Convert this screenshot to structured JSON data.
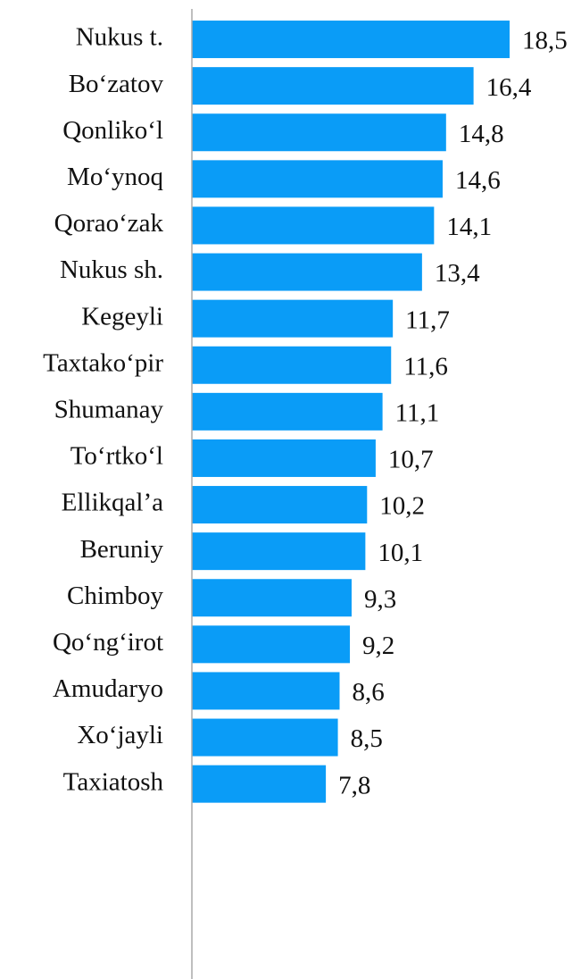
{
  "chart_data": {
    "type": "bar",
    "orientation": "horizontal",
    "categories": [
      "Nukus t.",
      "Bo‘zatov",
      "Qonliko‘l",
      "Mo‘ynoq",
      "Qorao‘zak",
      "Nukus sh.",
      "Kegeyli",
      "Taxtako‘pir",
      "Shumanay",
      "To‘rtko‘l",
      "Ellikqal’a",
      "Beruniy",
      "Chimboy",
      "Qo‘ng‘irot",
      "Amudaryo",
      "Xo‘jayli",
      "Taxiatosh"
    ],
    "values": [
      18.5,
      16.4,
      14.8,
      14.6,
      14.1,
      13.4,
      11.7,
      11.6,
      11.1,
      10.7,
      10.2,
      10.1,
      9.3,
      9.2,
      8.6,
      8.5,
      7.8
    ],
    "value_labels": [
      "18,5",
      "16,4",
      "14,8",
      "14,6",
      "14,1",
      "13,4",
      "11,7",
      "11,6",
      "11,1",
      "10,7",
      "10,2",
      "10,1",
      "9,3",
      "9,2",
      "8,6",
      "8,5",
      "7,8"
    ],
    "color": "#0a9cf7",
    "xlim": [
      0,
      22.5
    ]
  }
}
